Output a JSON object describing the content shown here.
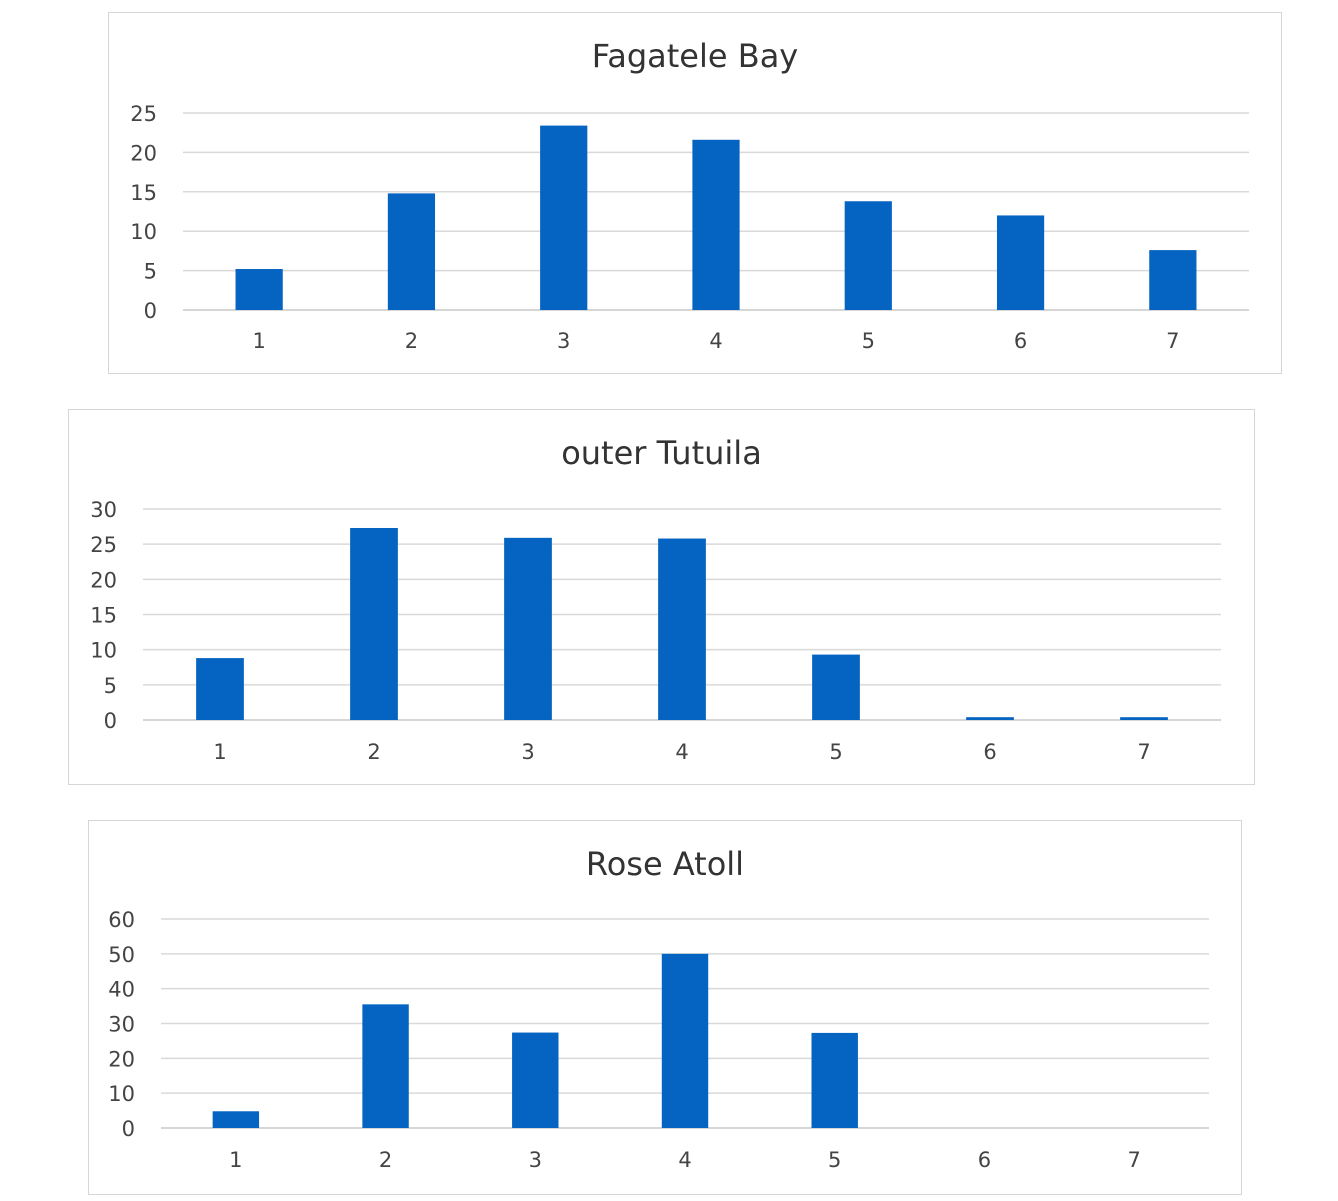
{
  "chart_data": [
    {
      "type": "bar",
      "title": "Fagatele Bay",
      "categories": [
        "1",
        "2",
        "3",
        "4",
        "5",
        "6",
        "7"
      ],
      "values": [
        5.2,
        14.8,
        23.4,
        21.6,
        13.8,
        12.0,
        7.6
      ],
      "y_ticks": [
        "0",
        "5",
        "10",
        "15",
        "20",
        "25"
      ],
      "ylim": [
        0,
        25
      ],
      "grid": true,
      "bar_color": "#0563c1"
    },
    {
      "type": "bar",
      "title": "outer Tutuila",
      "categories": [
        "1",
        "2",
        "3",
        "4",
        "5",
        "6",
        "7"
      ],
      "values": [
        8.8,
        27.3,
        25.9,
        25.8,
        9.3,
        0.4,
        0.4
      ],
      "y_ticks": [
        "0",
        "5",
        "10",
        "15",
        "20",
        "25",
        "30"
      ],
      "ylim": [
        0,
        30
      ],
      "grid": true,
      "bar_color": "#0563c1"
    },
    {
      "type": "bar",
      "title": "Rose Atoll",
      "categories": [
        "1",
        "2",
        "3",
        "4",
        "5",
        "6",
        "7"
      ],
      "values": [
        4.8,
        35.5,
        27.4,
        50.0,
        27.3,
        0,
        0
      ],
      "y_ticks": [
        "0",
        "10",
        "20",
        "30",
        "40",
        "50",
        "60"
      ],
      "ylim": [
        0,
        60
      ],
      "grid": true,
      "bar_color": "#0563c1"
    }
  ]
}
